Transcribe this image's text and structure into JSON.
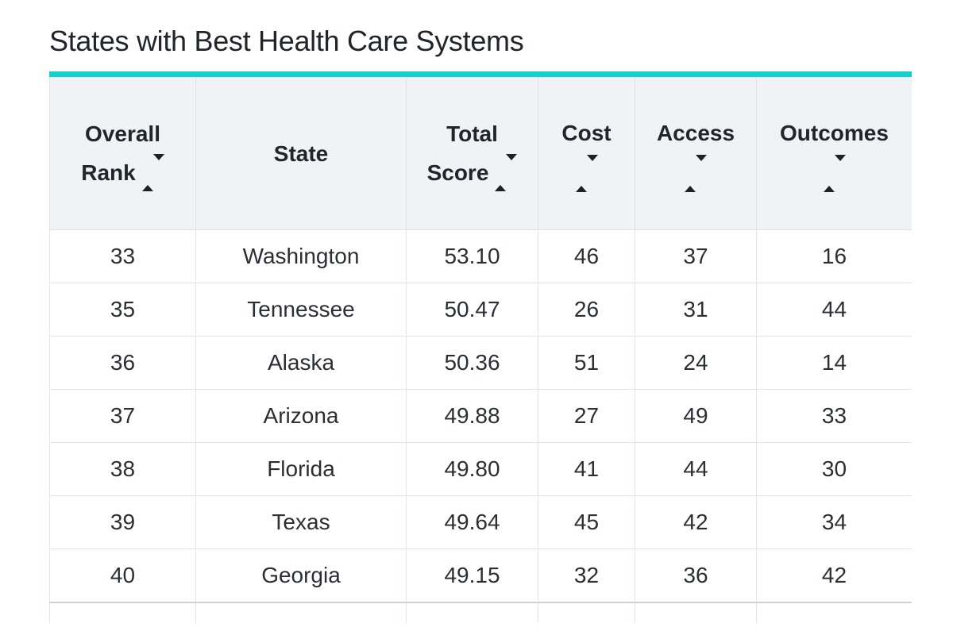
{
  "page": {
    "title": "States with Best Health Care Systems",
    "accent_color": "#11d1ca",
    "header_bg_color": "#f0f3f6",
    "border_color": "#e1e6ea",
    "text_color": "#2b2f34"
  },
  "table": {
    "columns": [
      {
        "label": "Overall Rank",
        "line1": "Overall",
        "line2": "Rank",
        "sortable": true,
        "sort_icon": "sort-updown-icon"
      },
      {
        "label": "State",
        "line1": "State",
        "line2": "",
        "sortable": false,
        "sort_icon": ""
      },
      {
        "label": "Total Score",
        "line1": "Total",
        "line2": "Score",
        "sortable": true,
        "sort_icon": "sort-updown-icon"
      },
      {
        "label": "Cost",
        "line1": "Cost",
        "line2": "",
        "sortable": true,
        "sort_icon": "sort-updown-icon"
      },
      {
        "label": "Access",
        "line1": "Access",
        "line2": "",
        "sortable": true,
        "sort_icon": "sort-updown-icon"
      },
      {
        "label": "Outcomes",
        "line1": "Outcomes",
        "line2": "",
        "sortable": true,
        "sort_icon": "sort-updown-icon"
      }
    ],
    "rows": [
      [
        "33",
        "Washington",
        "53.10",
        "46",
        "37",
        "16"
      ],
      [
        "35",
        "Tennessee",
        "50.47",
        "26",
        "31",
        "44"
      ],
      [
        "36",
        "Alaska",
        "50.36",
        "51",
        "24",
        "14"
      ],
      [
        "37",
        "Arizona",
        "49.88",
        "27",
        "49",
        "33"
      ],
      [
        "38",
        "Florida",
        "49.80",
        "41",
        "44",
        "30"
      ],
      [
        "39",
        "Texas",
        "49.64",
        "45",
        "42",
        "34"
      ],
      [
        "40",
        "Georgia",
        "49.15",
        "32",
        "36",
        "42"
      ]
    ]
  },
  "chart_data": {
    "type": "table",
    "title": "States with Best Health Care Systems",
    "columns": [
      "Overall Rank",
      "State",
      "Total Score",
      "Cost",
      "Access",
      "Outcomes"
    ],
    "rows": [
      [
        33,
        "Washington",
        53.1,
        46,
        37,
        16
      ],
      [
        35,
        "Tennessee",
        50.47,
        26,
        31,
        44
      ],
      [
        36,
        "Alaska",
        50.36,
        51,
        24,
        14
      ],
      [
        37,
        "Arizona",
        49.88,
        27,
        49,
        33
      ],
      [
        38,
        "Florida",
        49.8,
        41,
        44,
        30
      ],
      [
        39,
        "Texas",
        49.64,
        45,
        42,
        34
      ],
      [
        40,
        "Georgia",
        49.15,
        32,
        36,
        42
      ]
    ],
    "layout_hints": {
      "sortable_columns": [
        "Overall Rank",
        "Total Score",
        "Cost",
        "Access",
        "Outcomes"
      ],
      "partial_row_visible_at_bottom": true,
      "accent_bar_color": "#11d1ca"
    }
  }
}
